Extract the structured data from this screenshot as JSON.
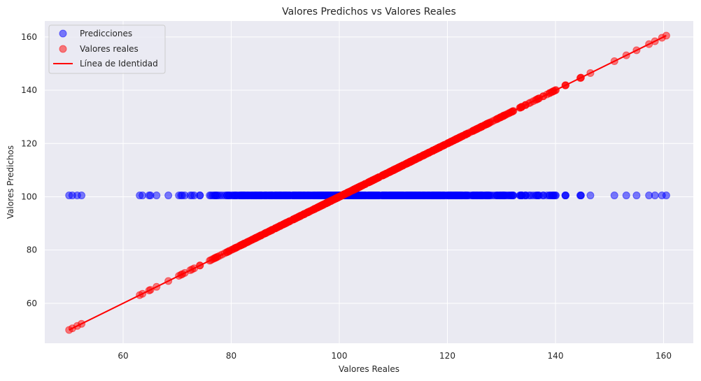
{
  "chart_data": {
    "type": "scatter",
    "title": "Valores Predichos vs Valores Reales",
    "xlabel": "Valores Reales",
    "ylabel": "Valores Predichos",
    "xlim": [
      45.5,
      165.5
    ],
    "ylim": [
      45,
      166
    ],
    "xticks": [
      60,
      80,
      100,
      120,
      140,
      160
    ],
    "yticks": [
      60,
      80,
      100,
      120,
      140,
      160
    ],
    "grid": true,
    "legend_position": "top-left",
    "colors": {
      "background": "#eaeaf2",
      "grid": "#ffffff",
      "predicciones": "#0000ff",
      "valores_reales": "#ff0000",
      "identidad": "#ff0000"
    },
    "series": [
      {
        "name": "Predicciones",
        "kind": "scatter",
        "color": "#0000ff",
        "x_range": [
          50,
          160.5
        ],
        "y_constant": 100.5
      },
      {
        "name": "Valores reales",
        "kind": "scatter",
        "color": "#ff0000",
        "x_range": [
          50,
          160.5
        ],
        "relation": "y = x"
      },
      {
        "name": "Línea de Identidad",
        "kind": "line",
        "color": "#ff0000",
        "x": [
          50,
          160.5
        ],
        "y": [
          50,
          160.5
        ]
      }
    ]
  }
}
